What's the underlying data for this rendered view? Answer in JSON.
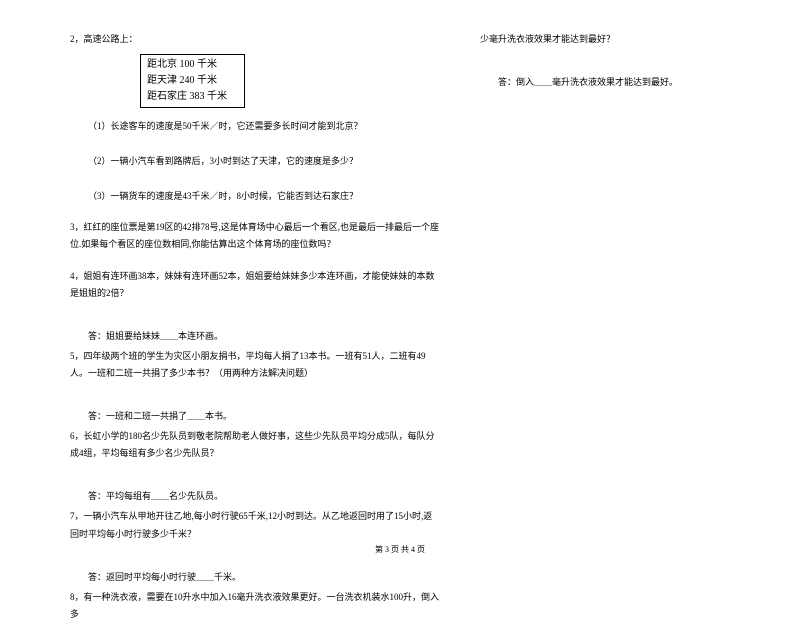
{
  "left": {
    "q2_head": "2，高速公路上：",
    "box": {
      "line1": "距北京 100 千米",
      "line2": "距天津 240 千米",
      "line3": "距石家庄 383 千米"
    },
    "q2_1": "（1）长途客车的速度是50千米／时，它还需要多长时间才能到北京？",
    "q2_2": "（2）一辆小汽车看到路牌后，3小时到达了天津，它的速度是多少？",
    "q2_3": "（3）一辆货车的速度是43千米／时，8小时候，它能否到达石家庄？",
    "q3": "3，红红的座位票是第19区的42排78号,这是体育场中心最后一个看区,也是最后一排最后一个座位.如果每个看区的座位数相同,你能估算出这个体育场的座位数吗？",
    "q4": "4，姐姐有连环画38本，妹妹有连环画52本，姐姐要给妹妹多少本连环画，才能使妹妹的本数是姐姐的2倍？",
    "q4_ans": "答：姐姐要给妹妹＿＿本连环画。",
    "q5": "5，四年级两个班的学生为灾区小朋友捐书，平均每人捐了13本书。一班有51人，二班有49人。一班和二班一共捐了多少本书？（用两种方法解决问题）",
    "q5_ans": "答：一班和二班一共捐了＿＿本书。",
    "q6": "6，长虹小学的180名少先队员到敬老院帮助老人做好事，这些少先队员平均分成5队，每队分成4组，平均每组有多少名少先队员？",
    "q6_ans": "答：平均每组有＿＿名少先队员。",
    "q7": "7，一辆小汽车从甲地开往乙地,每小时行驶65千米,12小时到达。从乙地返回时用了15小时,返回时平均每小时行驶多少千米？",
    "q7_ans": "答：返回时平均每小时行驶＿＿千米。",
    "q8": "8，有一种洗衣液，需要在10升水中加入16毫升洗衣液效果更好。一台洗衣机装水100升，倒入多"
  },
  "right": {
    "q8_cont": "少毫升洗衣液效果才能达到最好？",
    "q8_ans": "答：倒入＿＿毫升洗衣液效果才能达到最好。"
  },
  "footer": "第 3 页 共 4 页"
}
